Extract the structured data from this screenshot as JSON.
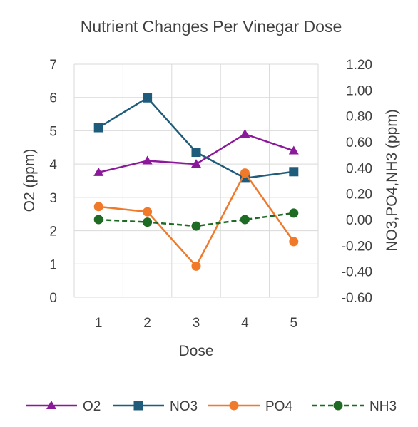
{
  "chart_data": {
    "type": "line",
    "title": "Nutrient Changes Per Vinegar Dose",
    "xlabel": "Dose",
    "ylabel": "O2 (ppm)",
    "y2label": "NO3,PO4,NH3 (ppm)",
    "categories": [
      "1",
      "2",
      "3",
      "4",
      "5"
    ],
    "ylim": [
      0,
      7
    ],
    "y2lim": [
      -0.6,
      1.2
    ],
    "yticks": [
      "0",
      "1",
      "2",
      "3",
      "4",
      "5",
      "6",
      "7"
    ],
    "y2ticks": [
      "-0.60",
      "-0.40",
      "-0.20",
      "0.00",
      "0.20",
      "0.40",
      "0.60",
      "0.80",
      "1.00",
      "1.20"
    ],
    "grid": true,
    "legend_position": "bottom",
    "series": [
      {
        "name": "O2",
        "axis": "left",
        "color": "#8B1A9A",
        "marker": "triangle",
        "dash": false,
        "values": [
          3.75,
          4.1,
          4.0,
          4.9,
          4.4
        ]
      },
      {
        "name": "NO3",
        "axis": "right",
        "color": "#1F5B7A",
        "marker": "square",
        "dash": false,
        "values": [
          0.71,
          0.94,
          0.52,
          0.32,
          0.37
        ]
      },
      {
        "name": "PO4",
        "axis": "right",
        "color": "#F07A2A",
        "marker": "circle",
        "dash": false,
        "values": [
          0.1,
          0.06,
          -0.36,
          0.36,
          -0.17
        ]
      },
      {
        "name": "NH3",
        "axis": "right",
        "color": "#1E6B23",
        "marker": "circle",
        "dash": true,
        "values": [
          0.0,
          -0.02,
          -0.05,
          0.0,
          0.05
        ]
      }
    ]
  }
}
